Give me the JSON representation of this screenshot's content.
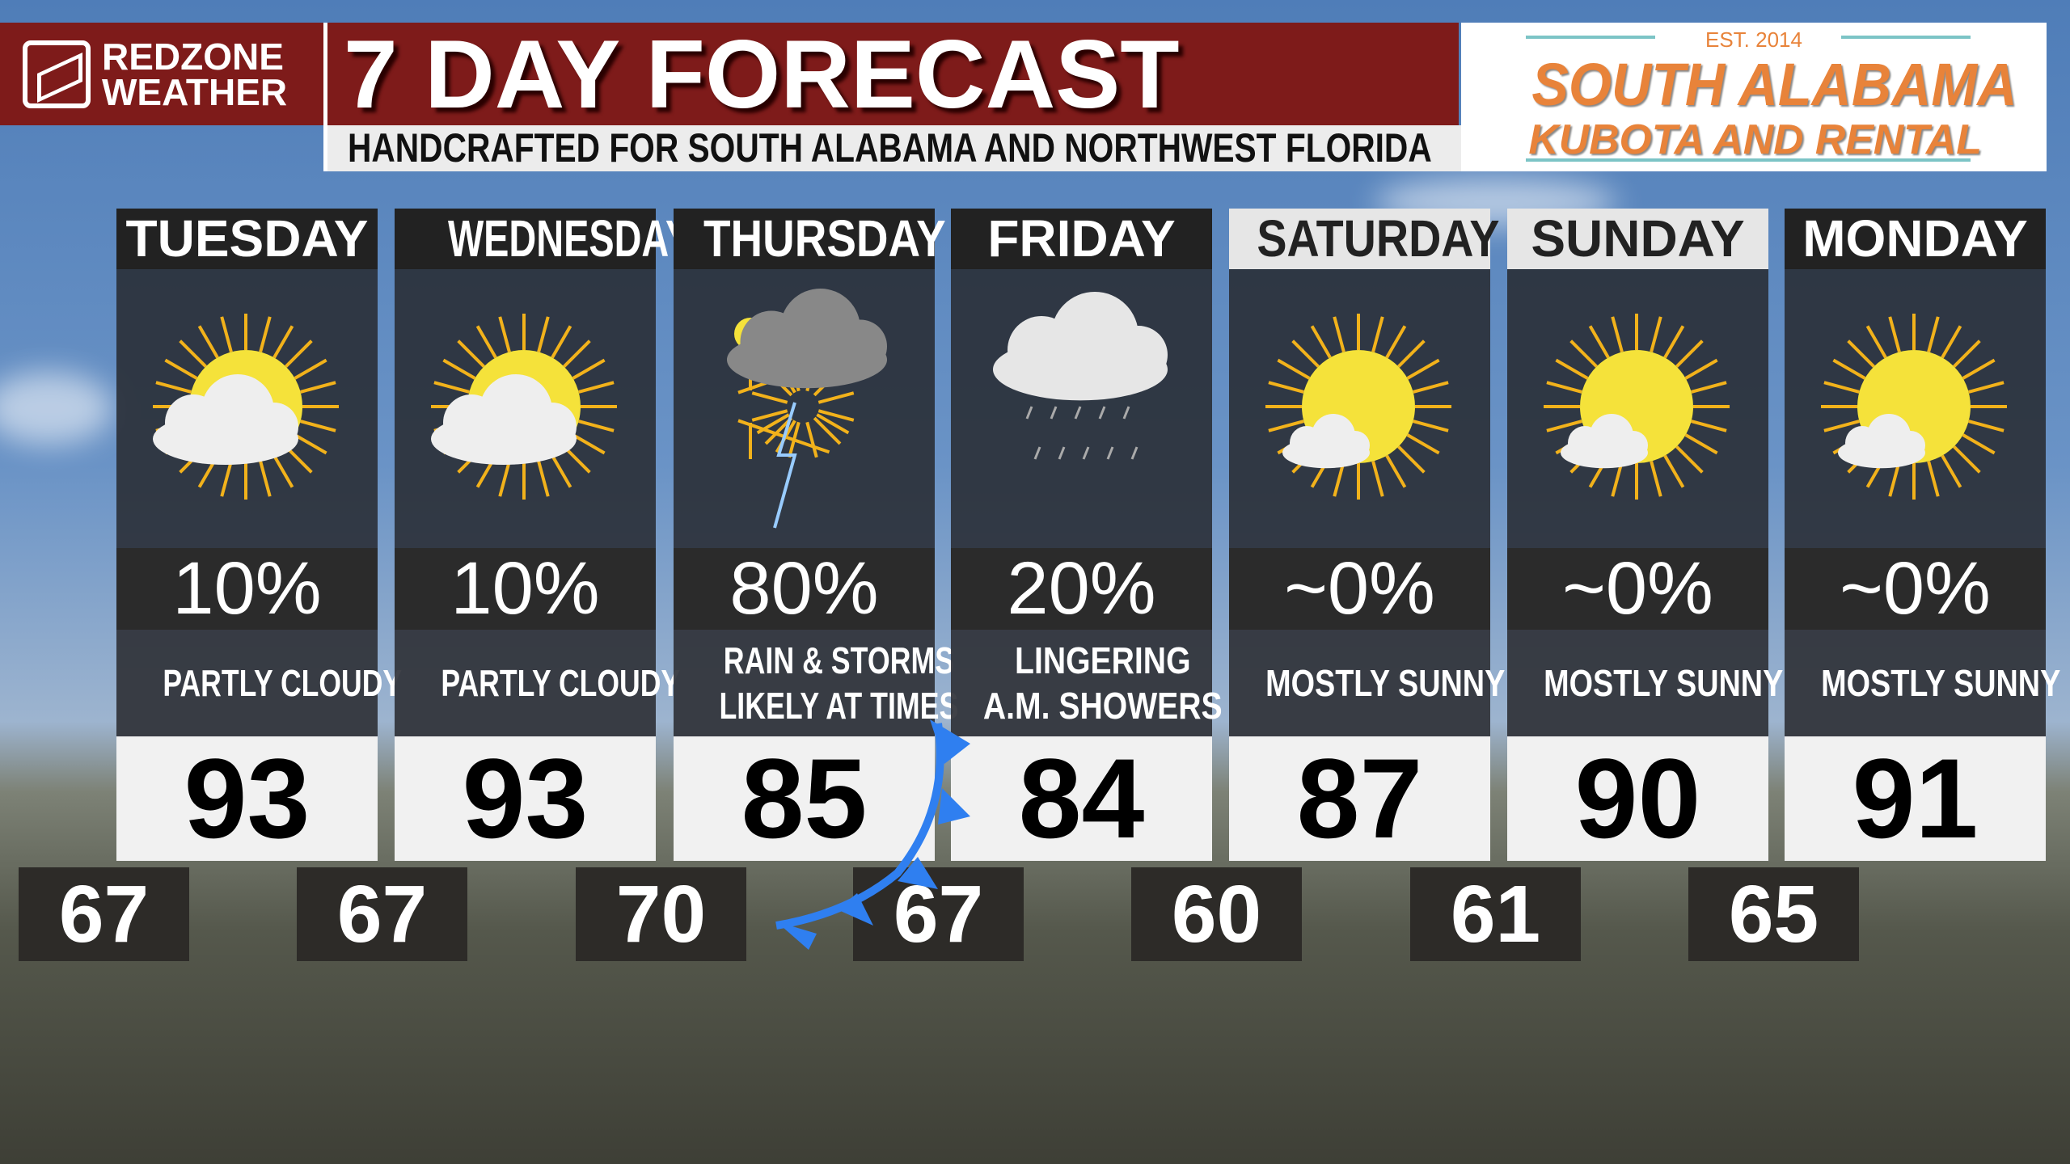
{
  "header": {
    "brand_line1": "REDZONE",
    "brand_line2": "WEATHER",
    "title": "7 DAY FORECAST",
    "subtitle": "HANDCRAFTED FOR SOUTH ALABAMA AND NORTHWEST FLORIDA"
  },
  "sponsor": {
    "est": "EST. 2014",
    "line1": "SOUTH ALABAMA",
    "line2": "KUBOTA AND RENTAL"
  },
  "days": [
    {
      "day": "TUESDAY",
      "icon": "partly-cloudy-icon",
      "precip": "10%",
      "condition": "PARTLY CLOUDY",
      "high": "93",
      "low": "67",
      "header_style": "dark"
    },
    {
      "day": "WEDNESDAY",
      "icon": "partly-cloudy-icon",
      "precip": "10%",
      "condition": "PARTLY CLOUDY",
      "high": "93",
      "low": "67",
      "header_style": "dark"
    },
    {
      "day": "THURSDAY",
      "icon": "thunderstorm-icon",
      "precip": "80%",
      "condition": "RAIN & STORMS\nLIKELY AT TIMES",
      "high": "85",
      "low": "70",
      "header_style": "dark"
    },
    {
      "day": "FRIDAY",
      "icon": "cloud-showers-icon",
      "precip": "20%",
      "condition": "LINGERING\nA.M. SHOWERS",
      "high": "84",
      "low": "67",
      "header_style": "dark"
    },
    {
      "day": "SATURDAY",
      "icon": "mostly-sunny-icon",
      "precip": "~0%",
      "condition": "MOSTLY SUNNY",
      "high": "87",
      "low": "60",
      "header_style": "light"
    },
    {
      "day": "SUNDAY",
      "icon": "mostly-sunny-icon",
      "precip": "~0%",
      "condition": "MOSTLY SUNNY",
      "high": "90",
      "low": "61",
      "header_style": "light"
    },
    {
      "day": "MONDAY",
      "icon": "mostly-sunny-icon",
      "precip": "~0%",
      "condition": "MOSTLY SUNNY",
      "high": "91",
      "low": "65",
      "header_style": "dark"
    }
  ],
  "colors": {
    "header_red": "#7e1b1a",
    "sponsor_orange": "#e8833a",
    "cold_front": "#2f7ff0",
    "sun": "#f5e23a"
  }
}
